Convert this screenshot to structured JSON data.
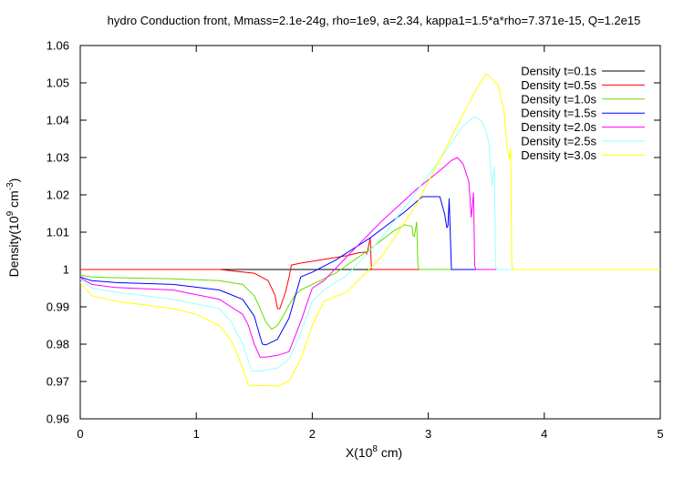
{
  "chart_data": {
    "type": "line",
    "title": "hydro Conduction front, Mmass=2.1e-24g, rho=1e9, a=2.34, kappa1=1.5*a*rho=7.371e-15, Q=1.2e15",
    "xlabel": {
      "main": "X(10",
      "sup": "8",
      "rest": " cm)"
    },
    "ylabel": {
      "main": "Density(10",
      "sup": "9",
      "rest": " cm",
      "sup2": "-3",
      "end": ")"
    },
    "xlim": [
      0,
      5
    ],
    "ylim": [
      0.96,
      1.06
    ],
    "x_ticks": [
      0,
      1,
      2,
      3,
      4,
      5
    ],
    "x_tick_labels": [
      "0",
      "1",
      "2",
      "3",
      "4",
      "5"
    ],
    "y_ticks": [
      0.96,
      0.97,
      0.98,
      0.99,
      1.0,
      1.01,
      1.02,
      1.03,
      1.04,
      1.05,
      1.06
    ],
    "y_tick_labels": [
      "0.96",
      "0.97",
      "0.98",
      "0.99",
      "1",
      "1.01",
      "1.02",
      "1.03",
      "1.04",
      "1.05",
      "1.06"
    ],
    "grid": false,
    "legend_position": "top-right",
    "series": [
      {
        "name": "Density t=0.1s",
        "color": "#000000",
        "x": [
          0,
          5
        ],
        "y": [
          1.0,
          1.0
        ]
      },
      {
        "name": "Density t=0.5s",
        "color": "#ff0000",
        "x": [
          0,
          1.2,
          1.5,
          1.62,
          1.68,
          1.7,
          1.72,
          1.77,
          1.8,
          1.82,
          1.9,
          2.1,
          2.3,
          2.4,
          2.46,
          2.47,
          2.48,
          2.49,
          2.5,
          2.51,
          5
        ],
        "y": [
          1.0,
          1.0,
          0.999,
          0.997,
          0.993,
          0.9895,
          0.9895,
          0.994,
          0.998,
          1.0012,
          1.0017,
          1.0027,
          1.0037,
          1.0045,
          1.0047,
          1.004,
          1.0055,
          1.007,
          1.0085,
          1.0,
          1.0
        ]
      },
      {
        "name": "Density t=1.0s",
        "color": "#66dd00",
        "x": [
          0,
          0.1,
          0.3,
          0.8,
          1.2,
          1.4,
          1.5,
          1.55,
          1.6,
          1.65,
          1.7,
          1.72,
          1.8,
          1.85,
          1.9,
          2.2,
          2.5,
          2.7,
          2.8,
          2.86,
          2.87,
          2.88,
          2.9,
          2.91,
          2.92,
          5
        ],
        "y": [
          0.9985,
          0.998,
          0.9978,
          0.9975,
          0.997,
          0.996,
          0.993,
          0.9895,
          0.986,
          0.984,
          0.985,
          0.986,
          0.9905,
          0.993,
          0.9945,
          0.999,
          1.0055,
          1.0103,
          1.012,
          1.0115,
          1.009,
          1.0088,
          1.0127,
          1.001,
          1.0,
          1.0
        ]
      },
      {
        "name": "Density t=1.5s",
        "color": "#0000ff",
        "x": [
          0,
          0.1,
          0.3,
          0.8,
          1.2,
          1.4,
          1.5,
          1.55,
          1.57,
          1.6,
          1.7,
          1.8,
          1.85,
          1.9,
          2.0,
          2.2,
          2.5,
          2.8,
          2.95,
          3.1,
          3.14,
          3.16,
          3.17,
          3.18,
          3.2,
          3.21,
          5
        ],
        "y": [
          0.998,
          0.997,
          0.9965,
          0.996,
          0.9945,
          0.992,
          0.9875,
          0.982,
          0.98,
          0.9798,
          0.9813,
          0.987,
          0.9925,
          0.998,
          0.9993,
          1.0025,
          1.0085,
          1.0155,
          1.0195,
          1.0195,
          1.015,
          1.0112,
          1.0117,
          1.019,
          1.0,
          1.0,
          1.0
        ]
      },
      {
        "name": "Density t=2.0s",
        "color": "#ff00ff",
        "x": [
          0,
          0.1,
          0.3,
          0.8,
          1.2,
          1.4,
          1.45,
          1.5,
          1.55,
          1.6,
          1.7,
          1.8,
          1.9,
          2.0,
          2.1,
          2.3,
          2.6,
          2.9,
          3.1,
          3.2,
          3.25,
          3.3,
          3.35,
          3.37,
          3.39,
          3.4,
          3.41,
          5
        ],
        "y": [
          0.9978,
          0.996,
          0.9952,
          0.9945,
          0.992,
          0.988,
          0.985,
          0.98,
          0.9765,
          0.9765,
          0.977,
          0.978,
          0.986,
          0.995,
          0.997,
          1.0035,
          1.013,
          1.0215,
          1.0265,
          1.0292,
          1.03,
          1.0283,
          1.0235,
          1.014,
          1.0205,
          1.001,
          1.0,
          1.0
        ]
      },
      {
        "name": "Density t=2.5s",
        "color": "#99ffff",
        "x": [
          0,
          0.1,
          0.3,
          0.8,
          1.2,
          1.3,
          1.4,
          1.45,
          1.48,
          1.55,
          1.7,
          1.8,
          1.9,
          2.0,
          2.1,
          2.3,
          2.6,
          2.9,
          3.1,
          3.3,
          3.4,
          3.47,
          3.52,
          3.55,
          3.57,
          3.58,
          3.59,
          5
        ],
        "y": [
          0.9975,
          0.995,
          0.994,
          0.992,
          0.9895,
          0.986,
          0.98,
          0.9755,
          0.9728,
          0.9728,
          0.9736,
          0.976,
          0.983,
          0.9915,
          0.9945,
          0.9985,
          1.0085,
          1.021,
          1.0295,
          1.0385,
          1.041,
          1.0395,
          1.0345,
          1.0225,
          1.0275,
          1.001,
          1.0,
          1.0
        ]
      },
      {
        "name": "Density t=3.0s",
        "color": "#ffff00",
        "x": [
          0,
          0.1,
          0.3,
          0.8,
          1.0,
          1.2,
          1.3,
          1.35,
          1.4,
          1.45,
          1.7,
          1.8,
          1.9,
          2.0,
          2.1,
          2.3,
          2.6,
          2.9,
          3.2,
          3.4,
          3.5,
          3.6,
          3.65,
          3.68,
          3.7,
          3.71,
          3.72,
          3.73,
          5
        ],
        "y": [
          0.9965,
          0.993,
          0.9915,
          0.9895,
          0.988,
          0.985,
          0.981,
          0.9775,
          0.9735,
          0.969,
          0.9688,
          0.97,
          0.976,
          0.985,
          0.9915,
          0.994,
          1.0035,
          1.0175,
          1.0355,
          1.0475,
          1.0525,
          1.0495,
          1.043,
          1.033,
          1.0295,
          1.0325,
          1.001,
          1.0,
          1.0
        ]
      }
    ]
  }
}
